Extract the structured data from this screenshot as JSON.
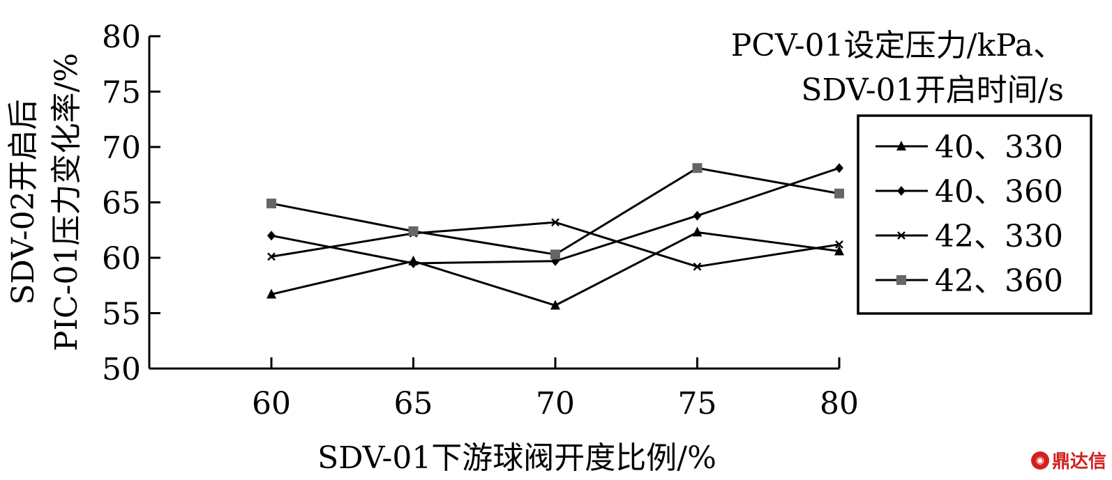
{
  "chart_data": {
    "type": "line",
    "xlabel": "SDV-01下游球阀开度比例/%",
    "ylabel_lines": [
      "SDV-02开启后",
      "PIC-01压力变化率/%"
    ],
    "x": [
      60,
      65,
      70,
      75,
      80
    ],
    "xlim": [
      55.7,
      80
    ],
    "ylim": [
      50,
      80
    ],
    "xticks": [
      60,
      65,
      70,
      75,
      80
    ],
    "yticks": [
      50,
      55,
      60,
      65,
      70,
      75,
      80
    ],
    "grid": false,
    "legend_title_lines": [
      "PCV-01设定压力/kPa、",
      "SDV-01开启时间/s"
    ],
    "legend_position": "right",
    "series": [
      {
        "name": "40、330",
        "marker": "triangle",
        "color": "#000000",
        "values": [
          56.7,
          59.7,
          55.7,
          62.3,
          60.6
        ]
      },
      {
        "name": "40、360",
        "marker": "diamond",
        "color": "#000000",
        "values": [
          62.0,
          59.5,
          59.7,
          63.8,
          68.1
        ]
      },
      {
        "name": "42、330",
        "marker": "x",
        "color": "#000000",
        "values": [
          60.1,
          62.2,
          63.2,
          59.2,
          61.2
        ]
      },
      {
        "name": "42、360",
        "marker": "square",
        "color": "#666666",
        "values": [
          64.9,
          62.4,
          60.3,
          68.1,
          65.8
        ]
      }
    ]
  },
  "watermark": {
    "text": "鼎达信",
    "icon": "logo-icon"
  }
}
